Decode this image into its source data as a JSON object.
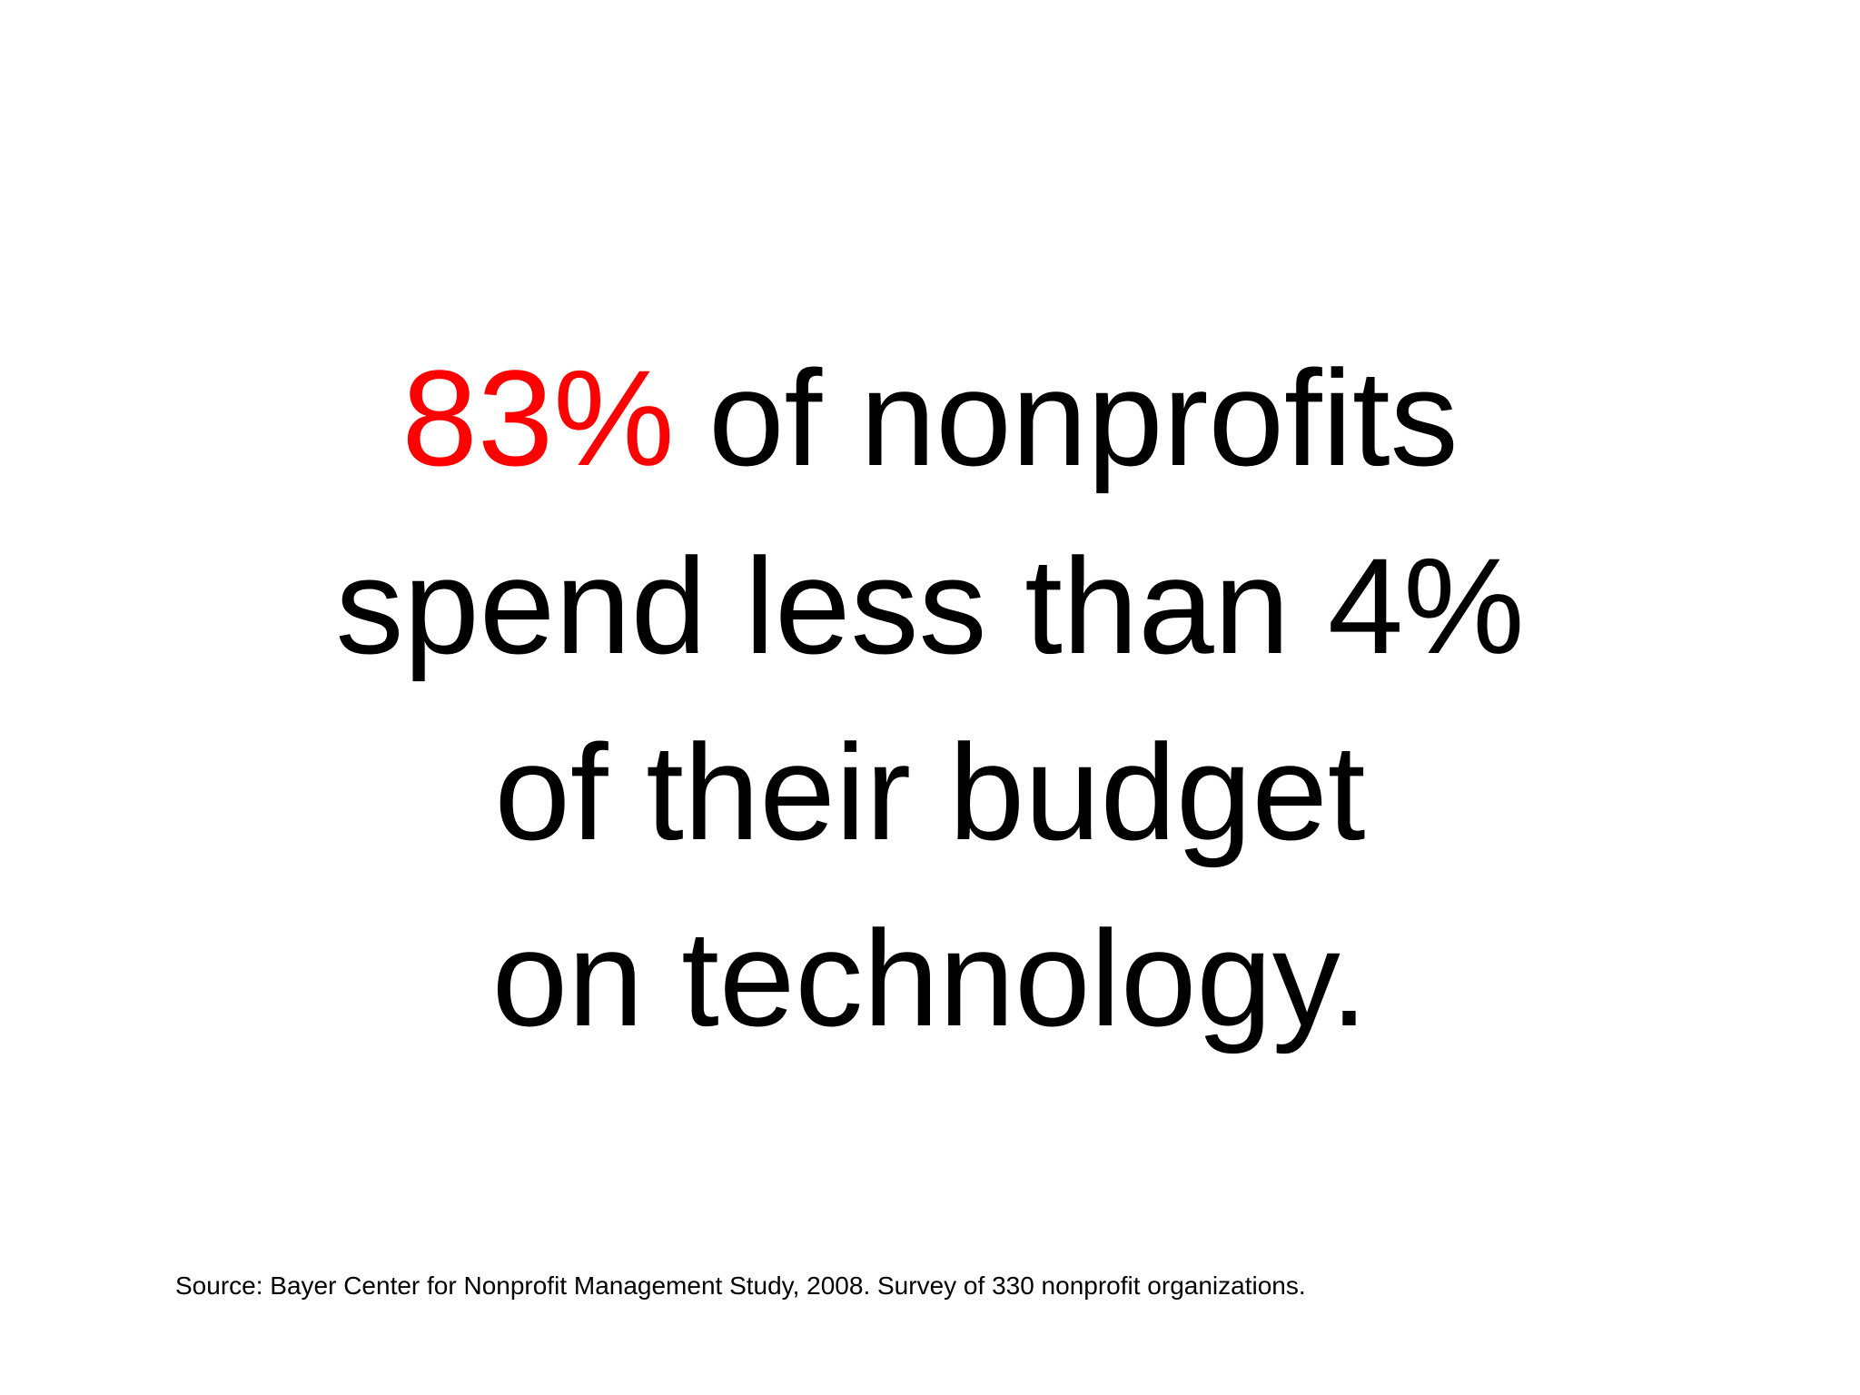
{
  "headline": {
    "highlight": "83%",
    "lines": [
      "of nonprofits",
      "spend less than 4%",
      "of their budget",
      "on technology."
    ]
  },
  "source": "Source: Bayer Center for Nonprofit Management Study, 2008. Survey of 330 nonprofit organizations."
}
